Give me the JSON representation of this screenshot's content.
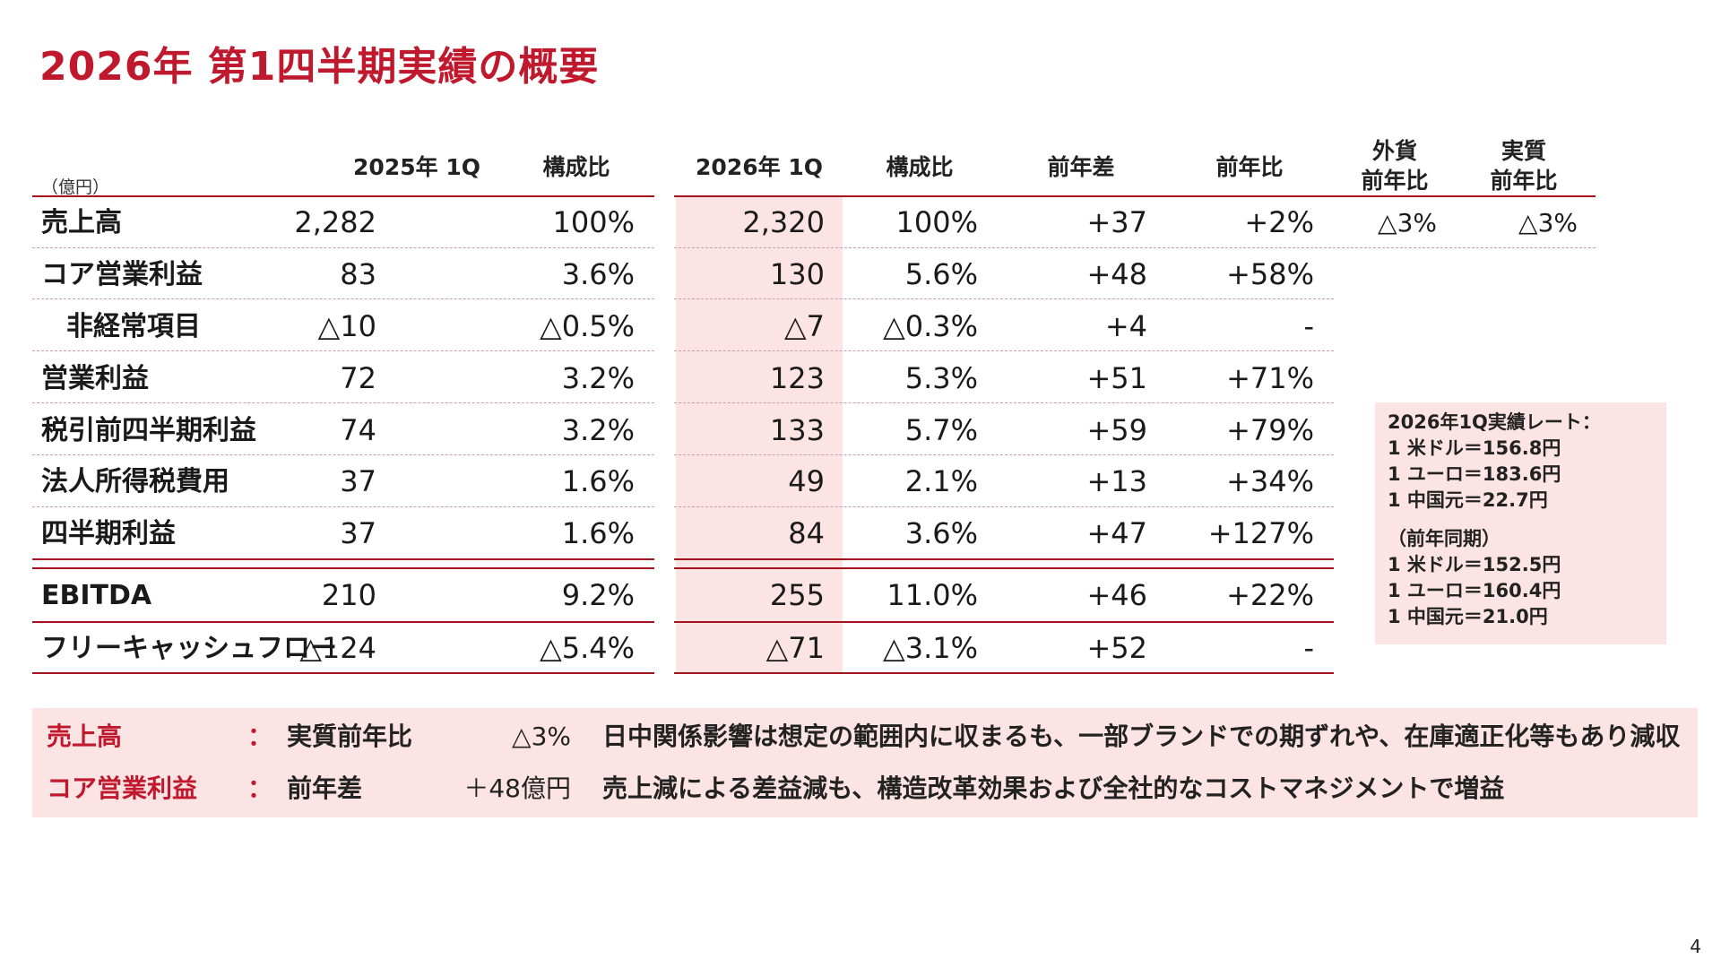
{
  "title": "2026年 第1四半期実績の概要",
  "unit_label": "（億円）",
  "headers": {
    "prev_1q": "2025年 1Q",
    "prev_ratio": "構成比",
    "cur_1q": "2026年 1Q",
    "cur_ratio": "構成比",
    "diff": "前年差",
    "yoy": "前年比",
    "fx_yoy_1": "外貨",
    "fx_yoy_2": "前年比",
    "real_yoy_1": "実質",
    "real_yoy_2": "前年比"
  },
  "rows": [
    {
      "label": "売上高",
      "prev": "2,282",
      "prev_ratio": "100%",
      "cur": "2,320",
      "cur_ratio": "100%",
      "diff": "+37",
      "yoy": "+2%",
      "fx_yoy": "△3%",
      "real_yoy": "△3%"
    },
    {
      "label": "コア営業利益",
      "prev": "83",
      "prev_ratio": "3.6%",
      "cur": "130",
      "cur_ratio": "5.6%",
      "diff": "+48",
      "yoy": "+58%"
    },
    {
      "label": "非経常項目",
      "prev": "△10",
      "prev_ratio": "△0.5%",
      "cur": "△7",
      "cur_ratio": "△0.3%",
      "diff": "+4",
      "yoy": "-"
    },
    {
      "label": "営業利益",
      "prev": "72",
      "prev_ratio": "3.2%",
      "cur": "123",
      "cur_ratio": "5.3%",
      "diff": "+51",
      "yoy": "+71%"
    },
    {
      "label": "税引前四半期利益",
      "prev": "74",
      "prev_ratio": "3.2%",
      "cur": "133",
      "cur_ratio": "5.7%",
      "diff": "+59",
      "yoy": "+79%"
    },
    {
      "label": "法人所得税費用",
      "prev": "37",
      "prev_ratio": "1.6%",
      "cur": "49",
      "cur_ratio": "2.1%",
      "diff": "+13",
      "yoy": "+34%"
    },
    {
      "label": "四半期利益",
      "prev": "37",
      "prev_ratio": "1.6%",
      "cur": "84",
      "cur_ratio": "3.6%",
      "diff": "+47",
      "yoy": "+127%"
    },
    {
      "label": "EBITDA",
      "prev": "210",
      "prev_ratio": "9.2%",
      "cur": "255",
      "cur_ratio": "11.0%",
      "diff": "+46",
      "yoy": "+22%"
    },
    {
      "label": "フリーキャッシュフロー",
      "prev": "△124",
      "prev_ratio": "△5.4%",
      "cur": "△71",
      "cur_ratio": "△3.1%",
      "diff": "+52",
      "yoy": "-"
    }
  ],
  "rates": {
    "current_title": "2026年1Q実績レート：",
    "current": [
      "1 米ドル＝156.8円",
      "1 ユーロ＝183.6円",
      "1 中国元＝22.7円"
    ],
    "previous_title": "（前年同期）",
    "previous": [
      "1 米ドル＝152.5円",
      "1 ユーロ＝160.4円",
      "1 中国元＝21.0円"
    ]
  },
  "summary": [
    {
      "item": "売上高",
      "colon": "：",
      "metric": "実質前年比",
      "value": "△3%",
      "text": "日中関係影響は想定の範囲内に収まるも、一部ブランドでの期ずれや、在庫適正化等もあり減収"
    },
    {
      "item": "コア営業利益",
      "colon": "：",
      "metric": "前年差",
      "value": "＋48億円",
      "text": "売上減による差益減も、構造改革効果および全社的なコストマネジメントで増益"
    }
  ],
  "page_number": "4",
  "colors": {
    "accent": "#c0192d",
    "rule": "#a3141f",
    "highlight": "#fde4e4"
  }
}
